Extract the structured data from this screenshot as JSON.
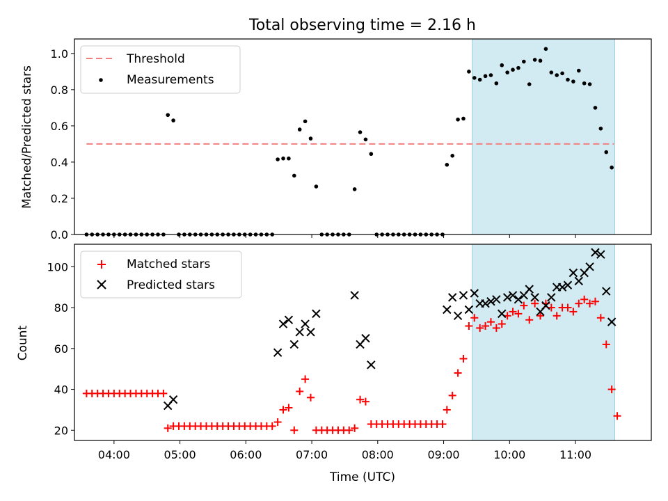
{
  "chart_data": [
    {
      "type": "scatter",
      "panel": "top",
      "title": "Total observing time = 2.16 h",
      "ylabel": "Matched/Predicted stars",
      "ylim": [
        0,
        1.08
      ],
      "yticks": [
        0.0,
        0.2,
        0.4,
        0.6,
        0.8,
        1.0
      ],
      "ytick_labels": [
        "0.0",
        "0.2",
        "0.4",
        "0.6",
        "0.8",
        "1.0"
      ],
      "xlim": [
        "03:24",
        "12:09"
      ],
      "shaded_span": [
        "09:13",
        "11:24"
      ],
      "threshold": {
        "name": "Threshold",
        "value": 0.5,
        "x": [
          "03:35",
          "11:35"
        ],
        "color": "#f08080"
      },
      "legend": "upper-left",
      "series": [
        {
          "name": "Measurements",
          "color": "#000000",
          "points": [
            [
              "03:35",
              0
            ],
            [
              "03:40",
              0
            ],
            [
              "03:45",
              0
            ],
            [
              "03:50",
              0
            ],
            [
              "03:55",
              0
            ],
            [
              "04:00",
              0
            ],
            [
              "04:05",
              0
            ],
            [
              "04:10",
              0
            ],
            [
              "04:15",
              0
            ],
            [
              "04:20",
              0
            ],
            [
              "04:25",
              0
            ],
            [
              "04:30",
              0
            ],
            [
              "04:35",
              0
            ],
            [
              "04:40",
              0
            ],
            [
              "04:45",
              0
            ],
            [
              "04:49",
              0.66
            ],
            [
              "04:54",
              0.63
            ],
            [
              "04:59",
              0
            ],
            [
              "05:04",
              0
            ],
            [
              "05:09",
              0
            ],
            [
              "05:14",
              0
            ],
            [
              "05:19",
              0
            ],
            [
              "05:24",
              0
            ],
            [
              "05:29",
              0
            ],
            [
              "05:34",
              0
            ],
            [
              "05:39",
              0
            ],
            [
              "05:44",
              0
            ],
            [
              "05:49",
              0
            ],
            [
              "05:54",
              0
            ],
            [
              "05:59",
              0
            ],
            [
              "06:04",
              0
            ],
            [
              "06:09",
              0
            ],
            [
              "06:14",
              0
            ],
            [
              "06:19",
              0
            ],
            [
              "06:24",
              0
            ],
            [
              "06:29",
              0.415
            ],
            [
              "06:34",
              0.42
            ],
            [
              "06:39",
              0.42
            ],
            [
              "06:44",
              0.325
            ],
            [
              "06:49",
              0.58
            ],
            [
              "06:54",
              0.625
            ],
            [
              "06:59",
              0.53
            ],
            [
              "07:04",
              0.265
            ],
            [
              "07:09",
              0
            ],
            [
              "07:14",
              0
            ],
            [
              "07:19",
              0
            ],
            [
              "07:24",
              0
            ],
            [
              "07:29",
              0
            ],
            [
              "07:34",
              0
            ],
            [
              "07:39",
              0.25
            ],
            [
              "07:44",
              0.565
            ],
            [
              "07:49",
              0.525
            ],
            [
              "07:54",
              0.445
            ],
            [
              "07:59",
              0
            ],
            [
              "08:04",
              0
            ],
            [
              "08:09",
              0
            ],
            [
              "08:14",
              0
            ],
            [
              "08:19",
              0
            ],
            [
              "08:24",
              0
            ],
            [
              "08:29",
              0
            ],
            [
              "08:34",
              0
            ],
            [
              "08:39",
              0
            ],
            [
              "08:44",
              0
            ],
            [
              "08:49",
              0
            ],
            [
              "08:54",
              0
            ],
            [
              "08:59",
              0
            ],
            [
              "09:03",
              0.385
            ],
            [
              "09:08",
              0.435
            ],
            [
              "09:13",
              0.635
            ],
            [
              "09:18",
              0.64
            ],
            [
              "09:23",
              0.9
            ],
            [
              "09:28",
              0.865
            ],
            [
              "09:33",
              0.855
            ],
            [
              "09:38",
              0.875
            ],
            [
              "09:43",
              0.88
            ],
            [
              "09:48",
              0.835
            ],
            [
              "09:53",
              0.935
            ],
            [
              "09:58",
              0.895
            ],
            [
              "10:03",
              0.91
            ],
            [
              "10:08",
              0.92
            ],
            [
              "10:13",
              0.955
            ],
            [
              "10:18",
              0.83
            ],
            [
              "10:23",
              0.965
            ],
            [
              "10:28",
              0.96
            ],
            [
              "10:33",
              1.025
            ],
            [
              "10:38",
              0.895
            ],
            [
              "10:43",
              0.88
            ],
            [
              "10:48",
              0.89
            ],
            [
              "10:53",
              0.855
            ],
            [
              "10:58",
              0.845
            ],
            [
              "11:03",
              0.905
            ],
            [
              "11:08",
              0.835
            ],
            [
              "11:13",
              0.83
            ],
            [
              "11:18",
              0.7
            ],
            [
              "11:23",
              0.585
            ],
            [
              "11:28",
              0.455
            ],
            [
              "11:33",
              0.37
            ]
          ]
        }
      ]
    },
    {
      "type": "scatter",
      "panel": "bottom",
      "xlabel": "Time (UTC)",
      "ylabel": "Count",
      "ylim": [
        15,
        111
      ],
      "yticks": [
        20,
        40,
        60,
        80,
        100
      ],
      "ytick_labels": [
        "20",
        "40",
        "60",
        "80",
        "100"
      ],
      "xlim": [
        "03:24",
        "12:09"
      ],
      "xticks": [
        "04:00",
        "05:00",
        "06:00",
        "07:00",
        "08:00",
        "09:00",
        "10:00",
        "11:00"
      ],
      "shaded_span": [
        "09:13",
        "11:24"
      ],
      "legend": "upper-left",
      "series": [
        {
          "name": "Matched stars",
          "color": "#ff0000",
          "marker": "plus",
          "points": [
            [
              "03:35",
              38
            ],
            [
              "03:40",
              38
            ],
            [
              "03:45",
              38
            ],
            [
              "03:50",
              38
            ],
            [
              "03:55",
              38
            ],
            [
              "04:00",
              38
            ],
            [
              "04:05",
              38
            ],
            [
              "04:10",
              38
            ],
            [
              "04:15",
              38
            ],
            [
              "04:20",
              38
            ],
            [
              "04:25",
              38
            ],
            [
              "04:30",
              38
            ],
            [
              "04:35",
              38
            ],
            [
              "04:40",
              38
            ],
            [
              "04:45",
              38
            ],
            [
              "04:49",
              21
            ],
            [
              "04:54",
              22
            ],
            [
              "04:59",
              22
            ],
            [
              "05:04",
              22
            ],
            [
              "05:09",
              22
            ],
            [
              "05:14",
              22
            ],
            [
              "05:19",
              22
            ],
            [
              "05:24",
              22
            ],
            [
              "05:29",
              22
            ],
            [
              "05:34",
              22
            ],
            [
              "05:39",
              22
            ],
            [
              "05:44",
              22
            ],
            [
              "05:49",
              22
            ],
            [
              "05:54",
              22
            ],
            [
              "05:59",
              22
            ],
            [
              "06:04",
              22
            ],
            [
              "06:09",
              22
            ],
            [
              "06:14",
              22
            ],
            [
              "06:19",
              22
            ],
            [
              "06:24",
              22
            ],
            [
              "06:29",
              24
            ],
            [
              "06:34",
              30
            ],
            [
              "06:39",
              31
            ],
            [
              "06:44",
              20
            ],
            [
              "06:49",
              39
            ],
            [
              "06:54",
              45
            ],
            [
              "06:59",
              36
            ],
            [
              "07:04",
              20
            ],
            [
              "07:09",
              20
            ],
            [
              "07:14",
              20
            ],
            [
              "07:19",
              20
            ],
            [
              "07:24",
              20
            ],
            [
              "07:29",
              20
            ],
            [
              "07:34",
              20
            ],
            [
              "07:39",
              21
            ],
            [
              "07:44",
              35
            ],
            [
              "07:49",
              34
            ],
            [
              "07:54",
              23
            ],
            [
              "07:59",
              23
            ],
            [
              "08:04",
              23
            ],
            [
              "08:09",
              23
            ],
            [
              "08:14",
              23
            ],
            [
              "08:19",
              23
            ],
            [
              "08:24",
              23
            ],
            [
              "08:29",
              23
            ],
            [
              "08:34",
              23
            ],
            [
              "08:39",
              23
            ],
            [
              "08:44",
              23
            ],
            [
              "08:49",
              23
            ],
            [
              "08:54",
              23
            ],
            [
              "08:59",
              23
            ],
            [
              "09:03",
              30
            ],
            [
              "09:08",
              37
            ],
            [
              "09:13",
              48
            ],
            [
              "09:18",
              55
            ],
            [
              "09:23",
              71
            ],
            [
              "09:28",
              75
            ],
            [
              "09:33",
              70
            ],
            [
              "09:38",
              71
            ],
            [
              "09:43",
              73
            ],
            [
              "09:48",
              70
            ],
            [
              "09:53",
              72
            ],
            [
              "09:58",
              76
            ],
            [
              "10:03",
              78
            ],
            [
              "10:08",
              77
            ],
            [
              "10:13",
              81
            ],
            [
              "10:18",
              74
            ],
            [
              "10:23",
              82
            ],
            [
              "10:28",
              76
            ],
            [
              "10:33",
              82
            ],
            [
              "10:38",
              80
            ],
            [
              "10:43",
              76
            ],
            [
              "10:48",
              80
            ],
            [
              "10:53",
              80
            ],
            [
              "10:58",
              78
            ],
            [
              "11:03",
              82
            ],
            [
              "11:08",
              84
            ],
            [
              "11:13",
              82
            ],
            [
              "11:18",
              83
            ],
            [
              "11:23",
              75
            ],
            [
              "11:28",
              62
            ],
            [
              "11:33",
              40
            ],
            [
              "11:38",
              27
            ]
          ]
        },
        {
          "name": "Predicted stars",
          "color": "#000000",
          "marker": "x",
          "points": [
            [
              "04:49",
              32
            ],
            [
              "04:54",
              35
            ],
            [
              "06:29",
              58
            ],
            [
              "06:34",
              72
            ],
            [
              "06:39",
              74
            ],
            [
              "06:44",
              62
            ],
            [
              "06:49",
              68
            ],
            [
              "06:54",
              72
            ],
            [
              "06:59",
              68
            ],
            [
              "07:04",
              77
            ],
            [
              "07:39",
              86
            ],
            [
              "07:44",
              62
            ],
            [
              "07:49",
              65
            ],
            [
              "07:54",
              52
            ],
            [
              "09:03",
              79
            ],
            [
              "09:08",
              85
            ],
            [
              "09:13",
              76
            ],
            [
              "09:18",
              86
            ],
            [
              "09:23",
              79
            ],
            [
              "09:28",
              87
            ],
            [
              "09:33",
              82
            ],
            [
              "09:38",
              82
            ],
            [
              "09:43",
              83
            ],
            [
              "09:48",
              84
            ],
            [
              "09:53",
              77
            ],
            [
              "09:58",
              85
            ],
            [
              "10:03",
              86
            ],
            [
              "10:08",
              84
            ],
            [
              "10:13",
              86
            ],
            [
              "10:18",
              89
            ],
            [
              "10:23",
              85
            ],
            [
              "10:28",
              78
            ],
            [
              "10:33",
              81
            ],
            [
              "10:38",
              85
            ],
            [
              "10:43",
              90
            ],
            [
              "10:48",
              90
            ],
            [
              "10:53",
              91
            ],
            [
              "10:58",
              97
            ],
            [
              "11:03",
              93
            ],
            [
              "11:08",
              97
            ],
            [
              "11:13",
              100
            ],
            [
              "11:18",
              107
            ],
            [
              "11:23",
              106
            ],
            [
              "11:28",
              88
            ],
            [
              "11:33",
              73
            ]
          ]
        }
      ]
    }
  ]
}
